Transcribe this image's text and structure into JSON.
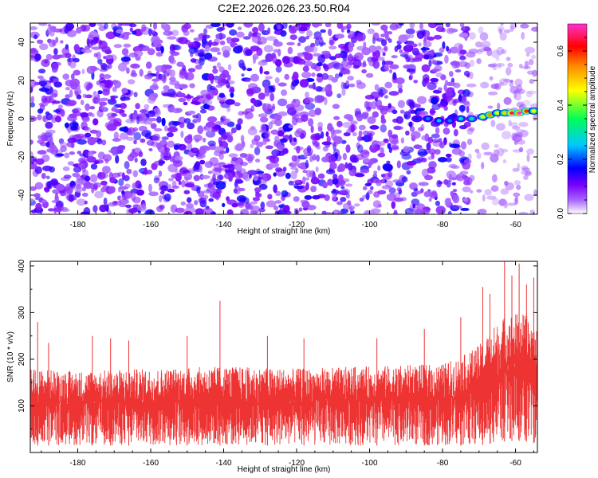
{
  "title": "C2E2.2026.026.23.50.R04",
  "chart_data": [
    {
      "type": "heatmap",
      "title": "",
      "xlabel": "Height of straight line (km)",
      "ylabel": "Frequency (Hz)",
      "xlim": [
        -193,
        -54
      ],
      "ylim": [
        -50,
        50
      ],
      "xticks": [
        -180,
        -160,
        -140,
        -120,
        -100,
        -80,
        -60
      ],
      "xtick_labels": [
        "-180",
        "-160",
        "-140",
        "-120",
        "-100",
        "-80",
        "-60"
      ],
      "yticks": [
        -40,
        -20,
        0,
        20,
        40
      ],
      "ytick_labels": [
        "-40",
        "-20",
        "0",
        "20",
        "40"
      ],
      "colorbar": {
        "label": "Normalized spectral amplitude",
        "range": [
          0.0,
          0.7
        ],
        "ticks": [
          0.0,
          0.2,
          0.4,
          0.6
        ],
        "tick_labels": [
          "0.0",
          "0.2",
          "0.4",
          "0.6"
        ],
        "colors": [
          "#ffffff",
          "#9933ff",
          "#0000ff",
          "#00ffff",
          "#00ff66",
          "#ffff00",
          "#ff8800",
          "#ff0000",
          "#ff33cc"
        ]
      },
      "background_noise": {
        "height_range": [
          -193,
          -54
        ],
        "frequency_range": [
          -50,
          50
        ],
        "typical_amplitude": [
          0.05,
          0.15
        ],
        "quiet_region_km": [
          -73,
          -55
        ]
      },
      "signal_track": [
        {
          "height": -87,
          "frequency": 0,
          "amplitude": 0.18
        },
        {
          "height": -84,
          "frequency": 0,
          "amplitude": 0.22
        },
        {
          "height": -81,
          "frequency": -1,
          "amplitude": 0.25
        },
        {
          "height": -78,
          "frequency": -1,
          "amplitude": 0.22
        },
        {
          "height": -75,
          "frequency": 0,
          "amplitude": 0.28
        },
        {
          "height": -72,
          "frequency": 0,
          "amplitude": 0.3
        },
        {
          "height": -69,
          "frequency": 1,
          "amplitude": 0.45
        },
        {
          "height": -67,
          "frequency": 2,
          "amplitude": 0.55
        },
        {
          "height": -65,
          "frequency": 3,
          "amplitude": 0.45
        },
        {
          "height": -63,
          "frequency": 3,
          "amplitude": 0.5
        },
        {
          "height": -61,
          "frequency": 3,
          "amplitude": 0.65
        },
        {
          "height": -59,
          "frequency": 3,
          "amplitude": 0.7
        },
        {
          "height": -57,
          "frequency": 4,
          "amplitude": 0.6
        },
        {
          "height": -55,
          "frequency": 4,
          "amplitude": 0.45
        }
      ]
    },
    {
      "type": "line",
      "title": "",
      "xlabel": "Height of straight line (km)",
      "ylabel": "SNR (10 * v/v)",
      "xlim": [
        -193,
        -54
      ],
      "ylim": [
        0,
        410
      ],
      "xticks": [
        -180,
        -160,
        -140,
        -120,
        -100,
        -80,
        -60
      ],
      "xtick_labels": [
        "-180",
        "-160",
        "-140",
        "-120",
        "-100",
        "-80",
        "-60"
      ],
      "yticks": [
        100,
        200,
        300,
        400
      ],
      "ytick_labels": [
        "100",
        "200",
        "300",
        "400"
      ],
      "color": "#ee3333",
      "envelope": [
        {
          "height": -193,
          "low": 15,
          "high": 180
        },
        {
          "height": -180,
          "low": 15,
          "high": 175
        },
        {
          "height": -160,
          "low": 15,
          "high": 180
        },
        {
          "height": -140,
          "low": 15,
          "high": 185
        },
        {
          "height": -120,
          "low": 15,
          "high": 180
        },
        {
          "height": -100,
          "low": 15,
          "high": 185
        },
        {
          "height": -80,
          "low": 15,
          "high": 190
        },
        {
          "height": -74,
          "low": 15,
          "high": 210
        },
        {
          "height": -70,
          "low": 15,
          "high": 230
        },
        {
          "height": -66,
          "low": 20,
          "high": 270
        },
        {
          "height": -62,
          "low": 25,
          "high": 300
        },
        {
          "height": -58,
          "low": 25,
          "high": 300
        },
        {
          "height": -55,
          "low": 20,
          "high": 280
        }
      ],
      "peaks": [
        {
          "height": -191,
          "value": 280
        },
        {
          "height": -188,
          "value": 235
        },
        {
          "height": -176,
          "value": 250
        },
        {
          "height": -171,
          "value": 245
        },
        {
          "height": -166,
          "value": 240
        },
        {
          "height": -150,
          "value": 250
        },
        {
          "height": -141,
          "value": 325
        },
        {
          "height": -128,
          "value": 250
        },
        {
          "height": -118,
          "value": 245
        },
        {
          "height": -98,
          "value": 245
        },
        {
          "height": -85,
          "value": 265
        },
        {
          "height": -75,
          "value": 290
        },
        {
          "height": -69,
          "value": 355
        },
        {
          "height": -67,
          "value": 340
        },
        {
          "height": -63,
          "value": 410
        },
        {
          "height": -61,
          "value": 380
        },
        {
          "height": -59,
          "value": 405
        },
        {
          "height": -57,
          "value": 360
        },
        {
          "height": -55,
          "value": 375
        }
      ]
    }
  ]
}
